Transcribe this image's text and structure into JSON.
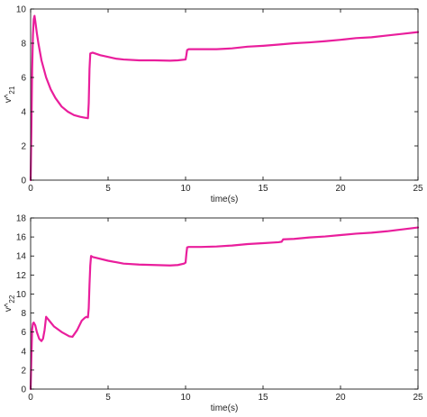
{
  "chart_data": [
    {
      "type": "line",
      "xlabel": "time(s)",
      "ylabel": "v^",
      "ylabel_sub": "21",
      "xlim": [
        0,
        25
      ],
      "ylim": [
        0,
        10
      ],
      "xticks": [
        0,
        5,
        10,
        15,
        20,
        25
      ],
      "yticks": [
        0,
        2,
        4,
        6,
        8,
        10
      ],
      "grid": false,
      "series": [
        {
          "color": "#e91e9c",
          "x": [
            0,
            0.05,
            0.1,
            0.15,
            0.2,
            0.25,
            0.3,
            0.4,
            0.5,
            0.7,
            1.0,
            1.3,
            1.6,
            2.0,
            2.4,
            2.8,
            3.2,
            3.5,
            3.7,
            3.75,
            3.8,
            3.85,
            4.0,
            4.5,
            5.0,
            5.5,
            6.0,
            7.0,
            8.0,
            9.0,
            9.5,
            10.0,
            10.05,
            10.1,
            10.2,
            11,
            12,
            13,
            14,
            15,
            16,
            17,
            18,
            19,
            20,
            21,
            22,
            23,
            24,
            25
          ],
          "y": [
            0,
            3,
            6.5,
            8.5,
            9.4,
            9.6,
            9.3,
            8.6,
            8.0,
            7.0,
            6.0,
            5.3,
            4.8,
            4.3,
            4.0,
            3.8,
            3.7,
            3.65,
            3.62,
            4.5,
            6.5,
            7.4,
            7.45,
            7.3,
            7.2,
            7.1,
            7.05,
            7.0,
            7.0,
            6.98,
            7.0,
            7.05,
            7.3,
            7.6,
            7.65,
            7.65,
            7.65,
            7.7,
            7.8,
            7.85,
            7.92,
            8.0,
            8.05,
            8.12,
            8.2,
            8.3,
            8.35,
            8.45,
            8.55,
            8.65
          ]
        }
      ]
    },
    {
      "type": "line",
      "xlabel": "time(s)",
      "ylabel": "v^",
      "ylabel_sub": "22",
      "xlim": [
        0,
        25
      ],
      "ylim": [
        0,
        18
      ],
      "xticks": [
        0,
        5,
        10,
        15,
        20,
        25
      ],
      "yticks": [
        0,
        2,
        4,
        6,
        8,
        10,
        12,
        14,
        16,
        18
      ],
      "grid": false,
      "series": [
        {
          "color": "#e91e9c",
          "x": [
            0,
            0.05,
            0.1,
            0.15,
            0.2,
            0.3,
            0.4,
            0.55,
            0.7,
            0.8,
            0.9,
            1.0,
            1.2,
            1.5,
            2.0,
            2.5,
            2.7,
            3.0,
            3.3,
            3.5,
            3.6,
            3.7,
            3.75,
            3.8,
            3.85,
            3.9,
            4.0,
            5.0,
            6.0,
            7.0,
            8.0,
            9.0,
            9.5,
            9.9,
            10.0,
            10.05,
            10.1,
            10.2,
            11,
            12,
            13,
            14,
            15,
            16,
            16.2,
            16.3,
            17,
            18,
            19,
            20,
            21,
            22,
            23,
            24,
            25
          ],
          "y": [
            0,
            3.5,
            6.3,
            6.9,
            7.0,
            6.7,
            6.0,
            5.3,
            5.05,
            5.3,
            6.2,
            7.6,
            7.2,
            6.6,
            6.0,
            5.55,
            5.5,
            6.2,
            7.2,
            7.5,
            7.6,
            7.55,
            8.5,
            11,
            13,
            14.0,
            13.9,
            13.5,
            13.2,
            13.1,
            13.05,
            13.0,
            13.05,
            13.2,
            13.3,
            14.2,
            14.9,
            14.95,
            14.95,
            15.0,
            15.1,
            15.25,
            15.35,
            15.45,
            15.5,
            15.75,
            15.8,
            15.95,
            16.05,
            16.2,
            16.35,
            16.45,
            16.6,
            16.8,
            17.0
          ]
        }
      ]
    }
  ]
}
